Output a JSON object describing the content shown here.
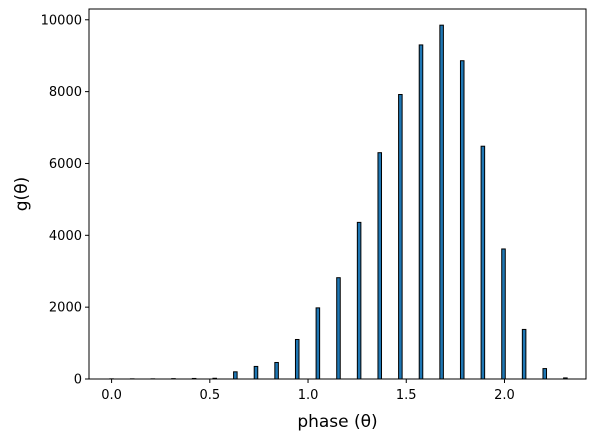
{
  "chart_data": {
    "type": "bar",
    "xlabel": "phase (θ)",
    "ylabel": "g(θ)",
    "xlim": [
      -0.115,
      2.415
    ],
    "ylim": [
      0,
      10300
    ],
    "xticks": [
      0.0,
      0.5,
      1.0,
      1.5,
      2.0
    ],
    "xtick_labels": [
      "0.0",
      "0.5",
      "1.0",
      "1.5",
      "2.0"
    ],
    "yticks": [
      0,
      2000,
      4000,
      6000,
      8000,
      10000
    ],
    "ytick_labels": [
      "0",
      "2000",
      "4000",
      "6000",
      "8000",
      "10000"
    ],
    "bar_width": 0.018,
    "x": [
      0.0,
      0.105,
      0.21,
      0.315,
      0.42,
      0.525,
      0.63,
      0.735,
      0.84,
      0.945,
      1.05,
      1.155,
      1.26,
      1.365,
      1.47,
      1.575,
      1.68,
      1.785,
      1.89,
      1.995,
      2.1,
      2.205,
      2.31
    ],
    "values": [
      5,
      5,
      5,
      10,
      15,
      20,
      200,
      350,
      460,
      1100,
      1980,
      2820,
      4360,
      6300,
      7920,
      9300,
      9850,
      8860,
      6480,
      3620,
      1380,
      290,
      30
    ],
    "grid": false,
    "legend": "none"
  }
}
